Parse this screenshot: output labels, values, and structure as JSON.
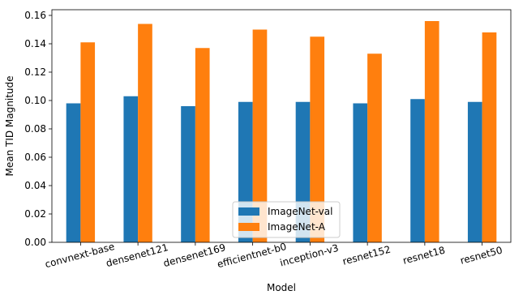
{
  "chart_data": {
    "type": "bar",
    "title": "",
    "xlabel": "Model",
    "ylabel": "Mean TID Magnitude",
    "categories": [
      "convnext-base",
      "densenet121",
      "densenet169",
      "efficientnet-b0",
      "inception-v3",
      "resnet152",
      "resnet18",
      "resnet50"
    ],
    "series": [
      {
        "name": "ImageNet-val",
        "color": "#1f77b4",
        "values": [
          0.098,
          0.103,
          0.096,
          0.099,
          0.099,
          0.098,
          0.101,
          0.099
        ]
      },
      {
        "name": "ImageNet-A",
        "color": "#ff7f0e",
        "values": [
          0.141,
          0.154,
          0.137,
          0.15,
          0.145,
          0.133,
          0.156,
          0.148
        ]
      }
    ],
    "ylim": [
      0,
      0.164
    ],
    "yticks": [
      "0.00",
      "0.02",
      "0.04",
      "0.06",
      "0.08",
      "0.10",
      "0.12",
      "0.14",
      "0.16"
    ],
    "grid": false,
    "legend_position": "lower center"
  }
}
